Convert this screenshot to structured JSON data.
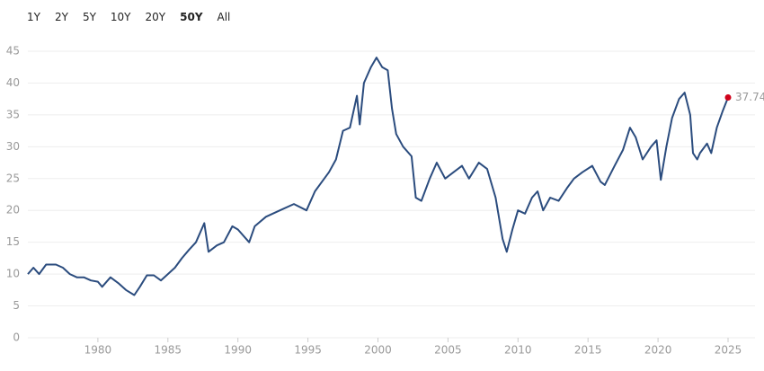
{
  "range_buttons": [
    "1Y",
    "2Y",
    "5Y",
    "10Y",
    "20Y",
    "50Y",
    "All"
  ],
  "active_range": "50Y",
  "chart_data": {
    "type": "line",
    "x": [
      1975.0,
      1975.4,
      1975.8,
      1976.3,
      1977.0,
      1977.5,
      1978.0,
      1978.5,
      1979.0,
      1979.5,
      1980.0,
      1980.3,
      1980.9,
      1981.5,
      1982.0,
      1982.6,
      1983.0,
      1983.5,
      1984.0,
      1984.5,
      1985.0,
      1985.5,
      1986.0,
      1986.5,
      1987.0,
      1987.6,
      1987.9,
      1988.5,
      1989.0,
      1989.6,
      1990.0,
      1990.8,
      1991.2,
      1992.0,
      1993.0,
      1994.0,
      1994.9,
      1995.5,
      1996.0,
      1996.5,
      1997.0,
      1997.5,
      1998.0,
      1998.5,
      1998.7,
      1999.0,
      1999.5,
      1999.9,
      2000.3,
      2000.7,
      2001.0,
      2001.3,
      2001.8,
      2002.4,
      2002.7,
      2003.1,
      2003.7,
      2004.2,
      2004.8,
      2005.4,
      2006.0,
      2006.5,
      2007.2,
      2007.8,
      2008.4,
      2008.9,
      2009.2,
      2009.6,
      2010.0,
      2010.5,
      2011.0,
      2011.4,
      2011.8,
      2012.3,
      2012.9,
      2013.5,
      2014.0,
      2014.6,
      2015.3,
      2015.9,
      2016.2,
      2016.9,
      2017.5,
      2018.0,
      2018.4,
      2018.9,
      2019.5,
      2019.9,
      2020.2,
      2020.6,
      2021.0,
      2021.5,
      2021.9,
      2022.3,
      2022.5,
      2022.8,
      2023.0,
      2023.5,
      2023.8,
      2024.2,
      2024.6,
      2025.0
    ],
    "series": [
      {
        "color": "#2b4c7e",
        "values": [
          10.0,
          11.0,
          10.0,
          11.5,
          11.5,
          11.0,
          10.0,
          9.5,
          9.5,
          9.0,
          8.8,
          8.0,
          9.5,
          8.5,
          7.5,
          6.7,
          8.0,
          9.8,
          9.8,
          9.0,
          10.0,
          11.0,
          12.5,
          13.8,
          15.0,
          18.0,
          13.5,
          14.5,
          15.0,
          17.5,
          17.0,
          15.0,
          17.5,
          19.0,
          20.0,
          21.0,
          20.0,
          23.0,
          24.5,
          26.0,
          28.0,
          32.5,
          33.0,
          38.0,
          33.5,
          40.0,
          42.5,
          44.0,
          42.5,
          42.0,
          36.0,
          32.0,
          30.0,
          28.5,
          22.0,
          21.5,
          25.0,
          27.5,
          25.0,
          26.0,
          27.0,
          25.0,
          27.5,
          26.5,
          22.0,
          15.5,
          13.5,
          17.0,
          20.0,
          19.5,
          22.0,
          23.0,
          20.0,
          22.0,
          21.5,
          23.5,
          25.0,
          26.0,
          27.0,
          24.5,
          24.0,
          27.0,
          29.5,
          33.0,
          31.5,
          28.0,
          30.0,
          31.0,
          24.8,
          30.0,
          34.5,
          37.5,
          38.5,
          35.0,
          29.0,
          28.0,
          29.0,
          30.5,
          29.0,
          33.0,
          35.5,
          37.74
        ]
      }
    ],
    "last_point_color": "#d0021b",
    "xlim": [
      1975,
      2025
    ],
    "ylim": [
      0,
      45
    ],
    "xticks": [
      1980,
      1985,
      1990,
      1995,
      2000,
      2005,
      2010,
      2015,
      2020,
      2025
    ],
    "yticks": [
      0,
      5,
      10,
      15,
      20,
      25,
      30,
      35,
      40,
      45
    ],
    "grid": true
  }
}
